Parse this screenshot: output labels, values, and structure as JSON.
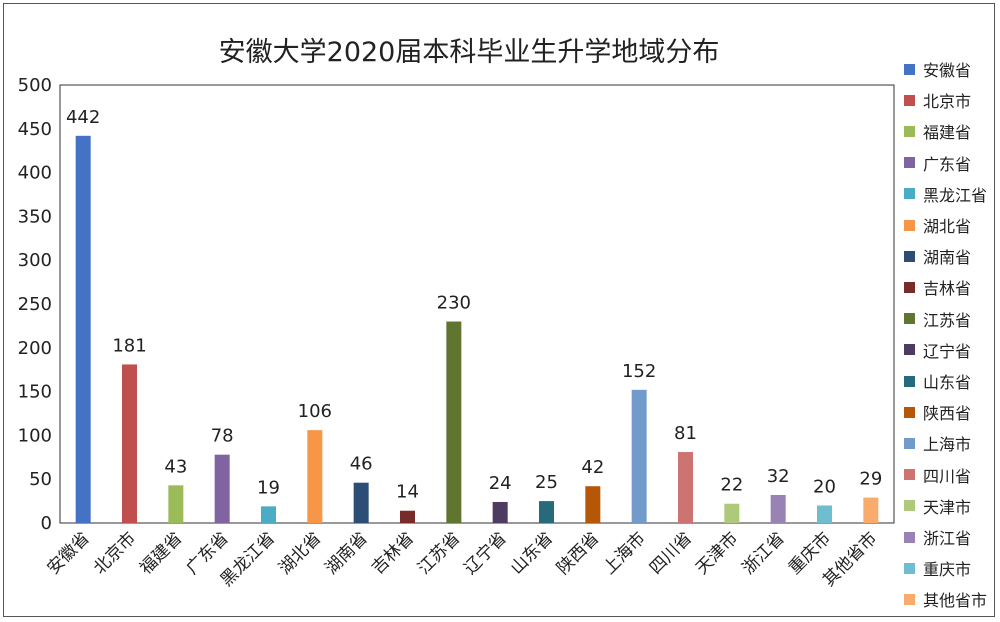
{
  "chart_data": {
    "type": "bar",
    "title": "安徽大学2020届本科毕业生升学地域分布",
    "xlabel": "",
    "ylabel": "",
    "ylim": [
      0,
      500
    ],
    "yticks": [
      0,
      50,
      100,
      150,
      200,
      250,
      300,
      350,
      400,
      450,
      500
    ],
    "grid": false,
    "legend_position": "right",
    "categories": [
      "安徽省",
      "北京市",
      "福建省",
      "广东省",
      "黑龙江省",
      "湖北省",
      "湖南省",
      "吉林省",
      "江苏省",
      "辽宁省",
      "山东省",
      "陕西省",
      "上海市",
      "四川省",
      "天津市",
      "浙江省",
      "重庆市",
      "其他省市"
    ],
    "values": [
      442,
      181,
      43,
      78,
      19,
      106,
      46,
      14,
      230,
      24,
      25,
      42,
      152,
      81,
      22,
      32,
      20,
      29
    ],
    "colors": [
      "#4472C4",
      "#C0504D",
      "#9BBB59",
      "#8064A2",
      "#4BACC6",
      "#F79646",
      "#2C4D75",
      "#772C2A",
      "#5F7530",
      "#4D3B62",
      "#276A7C",
      "#B65708",
      "#729ACA",
      "#CD7371",
      "#AFC97A",
      "#9983B5",
      "#6FBDD1",
      "#F9AB6B"
    ]
  }
}
